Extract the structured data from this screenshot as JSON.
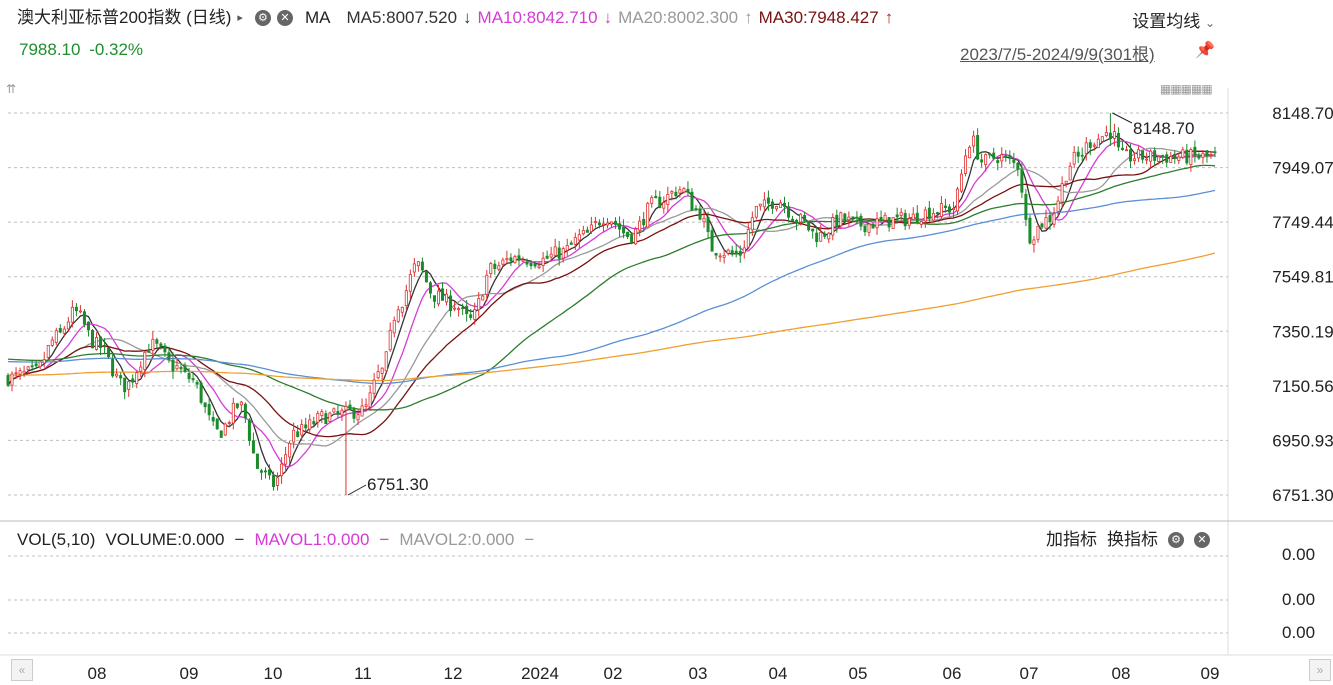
{
  "header": {
    "title": "澳大利亚标普200指数 (日线)",
    "play_icon": "play-triangle-icon",
    "ma_label": "MA",
    "ma5": "MA5:8007.520",
    "ma5_arrow": "↓",
    "ma10": "MA10:8042.710",
    "ma10_arrow": "↓",
    "ma20": "MA20:8002.300",
    "ma20_arrow": "↑",
    "ma30": "MA30:7948.427",
    "ma30_arrow": "↑",
    "settings_label": "设置均线",
    "price": "7988.10",
    "change": "-0.32%",
    "date_range": "2023/7/5-2024/9/9(301根)"
  },
  "volume_panel": {
    "vol_label": "VOL(5,10)",
    "volume": "VOLUME:0.000",
    "mavol1": "MAVOL1:0.000",
    "mavol2": "MAVOL2:0.000",
    "add_indicator": "加指标",
    "switch_indicator": "换指标",
    "y_ticks": [
      "0.00",
      "0.00",
      "0.00"
    ]
  },
  "colors": {
    "up": "#e03131",
    "down": "#1b8a2b",
    "ma5": "#333333",
    "ma10": "#d63bd6",
    "ma20": "#999999",
    "ma30": "#7a1010",
    "ma60": "#2e7d2e",
    "ma120": "#5b8fd6",
    "ma250": "#f0a030"
  },
  "chart_data": {
    "type": "candlestick",
    "y_ticks": [
      "8148.70",
      "7949.07",
      "7749.44",
      "7549.81",
      "7350.19",
      "7150.56",
      "6950.93",
      "6751.30"
    ],
    "ylim": [
      6751.3,
      8148.7
    ],
    "x_labels": [
      "08",
      "09",
      "10",
      "11",
      "12",
      "2024",
      "02",
      "03",
      "04",
      "05",
      "06",
      "07",
      "08",
      "09"
    ],
    "annotations": [
      {
        "label": "8148.70",
        "kind": "max"
      },
      {
        "label": "6751.30",
        "kind": "min"
      }
    ],
    "close_anchors": [
      {
        "m": 0,
        "v": 7180
      },
      {
        "m": 0.3,
        "v": 7200
      },
      {
        "m": 0.55,
        "v": 7330
      },
      {
        "m": 0.75,
        "v": 7420
      },
      {
        "m": 1.0,
        "v": 7300
      },
      {
        "m": 1.3,
        "v": 7150
      },
      {
        "m": 1.6,
        "v": 7300
      },
      {
        "m": 1.85,
        "v": 7220
      },
      {
        "m": 2.0,
        "v": 7180
      },
      {
        "m": 2.35,
        "v": 6980
      },
      {
        "m": 2.6,
        "v": 7080
      },
      {
        "m": 2.85,
        "v": 6840
      },
      {
        "m": 3.0,
        "v": 6790
      },
      {
        "m": 3.25,
        "v": 6980
      },
      {
        "m": 3.6,
        "v": 7040
      },
      {
        "m": 4.0,
        "v": 7060
      },
      {
        "m": 4.2,
        "v": 7200
      },
      {
        "m": 4.4,
        "v": 7450
      },
      {
        "m": 4.6,
        "v": 7590
      },
      {
        "m": 4.8,
        "v": 7480
      },
      {
        "m": 5.0,
        "v": 7450
      },
      {
        "m": 5.2,
        "v": 7390
      },
      {
        "m": 5.45,
        "v": 7580
      },
      {
        "m": 5.7,
        "v": 7620
      },
      {
        "m": 6.0,
        "v": 7610
      },
      {
        "m": 6.3,
        "v": 7640
      },
      {
        "m": 6.6,
        "v": 7700
      },
      {
        "m": 6.9,
        "v": 7770
      },
      {
        "m": 7.2,
        "v": 7700
      },
      {
        "m": 7.5,
        "v": 7820
      },
      {
        "m": 7.8,
        "v": 7870
      },
      {
        "m": 8.0,
        "v": 7790
      },
      {
        "m": 8.2,
        "v": 7650
      },
      {
        "m": 8.5,
        "v": 7630
      },
      {
        "m": 8.75,
        "v": 7800
      },
      {
        "m": 9.0,
        "v": 7830
      },
      {
        "m": 9.25,
        "v": 7760
      },
      {
        "m": 9.5,
        "v": 7700
      },
      {
        "m": 9.8,
        "v": 7760
      },
      {
        "m": 10.0,
        "v": 7740
      },
      {
        "m": 10.5,
        "v": 7760
      },
      {
        "m": 10.8,
        "v": 7790
      },
      {
        "m": 11.0,
        "v": 7800
      },
      {
        "m": 11.25,
        "v": 8050
      },
      {
        "m": 11.4,
        "v": 7970
      },
      {
        "m": 11.6,
        "v": 7990
      },
      {
        "m": 11.85,
        "v": 7960
      },
      {
        "m": 12.0,
        "v": 7700
      },
      {
        "m": 12.2,
        "v": 7760
      },
      {
        "m": 12.5,
        "v": 7980
      },
      {
        "m": 12.7,
        "v": 8050
      },
      {
        "m": 12.9,
        "v": 8080
      },
      {
        "m": 13.0,
        "v": 7988
      }
    ],
    "ma_start_levels": {
      "ma60": 7250,
      "ma120": 7240,
      "ma250": 7190
    }
  }
}
